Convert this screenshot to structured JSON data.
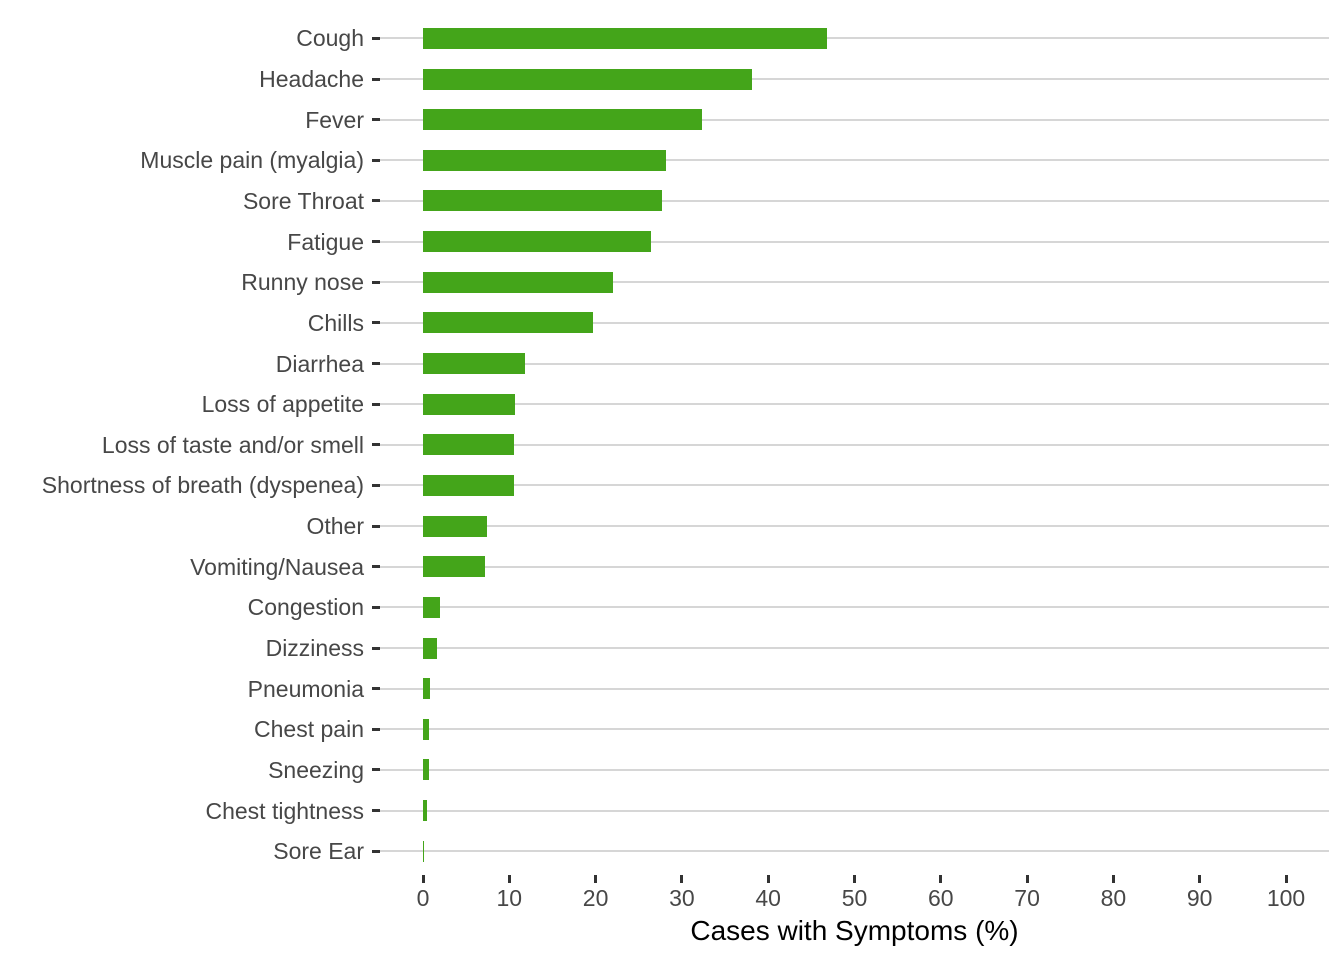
{
  "chart_data": {
    "type": "bar",
    "orientation": "horizontal",
    "title": "",
    "xlabel": "Cases with Symptoms (%)",
    "ylabel": "",
    "categories": [
      "Cough",
      "Headache",
      "Fever",
      "Muscle pain (myalgia)",
      "Sore Throat",
      "Fatigue",
      "Runny nose",
      "Chills",
      "Diarrhea",
      "Loss of appetite",
      "Loss of taste and/or smell",
      "Shortness of breath (dyspenea)",
      "Other",
      "Vomiting/Nausea",
      "Congestion",
      "Dizziness",
      "Pneumonia",
      "Chest pain",
      "Sneezing",
      "Chest tightness",
      "Sore Ear"
    ],
    "values": [
      46.8,
      38.1,
      32.3,
      28.2,
      27.7,
      26.4,
      22.0,
      19.7,
      11.8,
      10.6,
      10.5,
      10.5,
      7.4,
      7.2,
      2.0,
      1.6,
      0.8,
      0.7,
      0.7,
      0.4,
      0.15
    ],
    "xlim": [
      0,
      100
    ],
    "xticks": [
      0,
      10,
      20,
      30,
      40,
      50,
      60,
      70,
      80,
      90,
      100
    ],
    "grid": "horizontal-major-only",
    "legend": "none",
    "colors": {
      "bar": "#44A51A",
      "gridline": "#D6D6D6",
      "axis_tick": "#333333",
      "axis_text": "#474747",
      "axis_title": "#000000",
      "background": "#FFFFFF"
    }
  }
}
